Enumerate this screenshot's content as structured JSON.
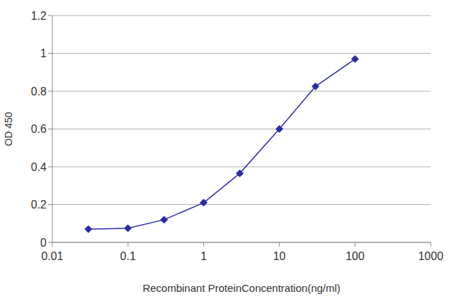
{
  "chart_data": {
    "type": "line",
    "x": [
      0.03,
      0.1,
      0.3,
      1,
      3,
      10,
      30,
      100
    ],
    "values": [
      0.07,
      0.075,
      0.12,
      0.21,
      0.365,
      0.6,
      0.825,
      0.97
    ],
    "x_label": "Recombinant ProteinConcentration(ng/ml)",
    "y_label": "OD 450",
    "xlim": [
      0.01,
      1000
    ],
    "xticks": [
      0.01,
      0.1,
      1,
      10,
      100,
      1000
    ],
    "ylim": [
      0,
      1.2
    ],
    "yticks": [
      0,
      0.2,
      0.4,
      0.6,
      0.8,
      1,
      1.2
    ],
    "log": "x",
    "grid": true,
    "color": "#2b2ba8",
    "marker": "diamond"
  }
}
